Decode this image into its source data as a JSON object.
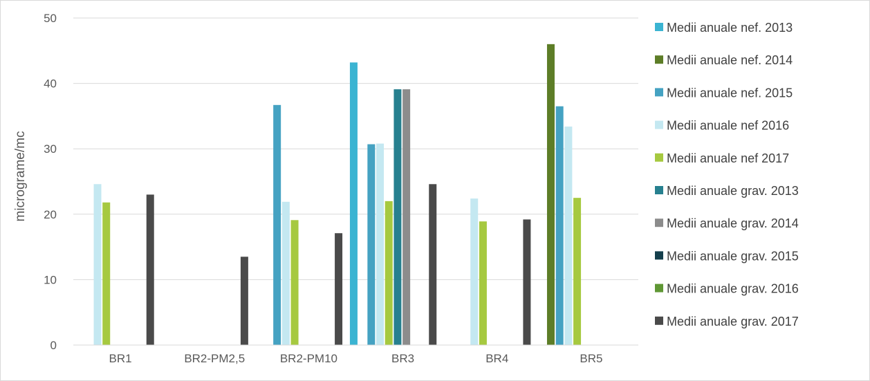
{
  "chart_data": {
    "type": "bar",
    "title": "",
    "xlabel": "",
    "ylabel": "micrograme/mc",
    "ylim": [
      0,
      50
    ],
    "yticks": [
      0,
      10,
      20,
      30,
      40,
      50
    ],
    "grid": true,
    "legend_position": "right",
    "categories": [
      "BR1",
      "BR2-PM2,5",
      "BR2-PM10",
      "BR3",
      "BR4",
      "BR5"
    ],
    "series": [
      {
        "name": "Medii anuale nef. 2013",
        "color": "#3bb4d2",
        "values": [
          null,
          null,
          null,
          43.2,
          null,
          null
        ]
      },
      {
        "name": "Medii anuale nef. 2014",
        "color": "#5d7d27",
        "values": [
          null,
          null,
          null,
          null,
          null,
          46.0
        ]
      },
      {
        "name": "Medii anuale nef. 2015",
        "color": "#45a2c2",
        "values": [
          null,
          null,
          36.7,
          30.7,
          null,
          36.5
        ]
      },
      {
        "name": "Medii anuale nef 2016",
        "color": "#c4e8f1",
        "values": [
          24.6,
          null,
          21.9,
          30.8,
          22.4,
          33.4
        ]
      },
      {
        "name": "Medii anuale nef 2017",
        "color": "#a6c940",
        "values": [
          21.8,
          null,
          19.1,
          22.0,
          18.9,
          22.5
        ]
      },
      {
        "name": "Medii anuale grav. 2013",
        "color": "#27808f",
        "values": [
          null,
          null,
          null,
          39.1,
          null,
          null
        ]
      },
      {
        "name": "Medii anuale grav. 2014",
        "color": "#8c8c8c",
        "values": [
          null,
          null,
          null,
          39.1,
          null,
          null
        ]
      },
      {
        "name": "Medii anuale grav. 2015",
        "color": "#143f4c",
        "values": [
          null,
          null,
          null,
          null,
          null,
          null
        ]
      },
      {
        "name": "Medii anuale grav. 2016",
        "color": "#5f9734",
        "values": [
          null,
          null,
          null,
          null,
          null,
          null
        ]
      },
      {
        "name": "Medii anuale grav. 2017",
        "color": "#4a4a4a",
        "values": [
          23.0,
          13.5,
          17.1,
          24.6,
          19.2,
          null
        ]
      }
    ]
  }
}
